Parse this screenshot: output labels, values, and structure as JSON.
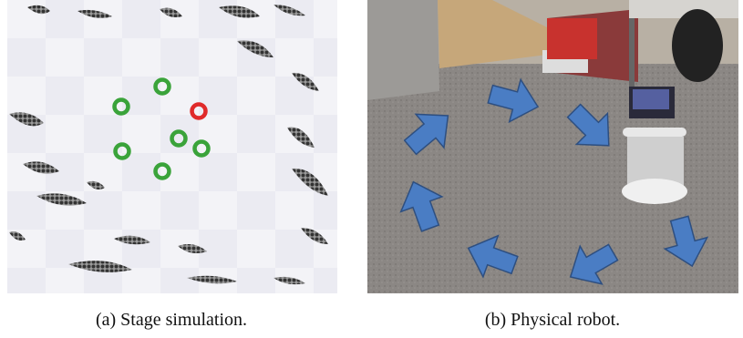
{
  "figure": {
    "subfigures": [
      {
        "caption": "(a) Stage simulation."
      },
      {
        "caption": "(b) Physical robot."
      }
    ]
  }
}
